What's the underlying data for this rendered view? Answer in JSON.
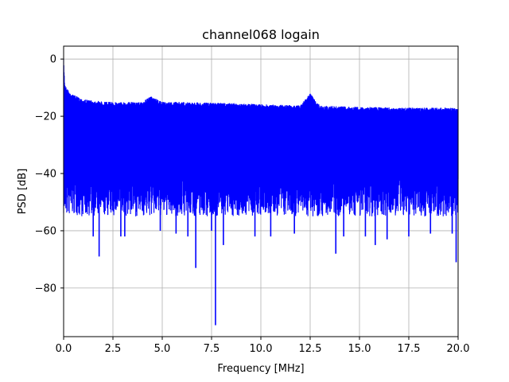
{
  "chart_data": {
    "type": "line",
    "title": "channel068 logain",
    "xlabel": "Frequency [MHz]",
    "ylabel": "PSD [dB]",
    "xlim": [
      0,
      20
    ],
    "ylim": [
      -97,
      4.5
    ],
    "grid": true,
    "x_ticks": [
      0,
      2.5,
      5,
      7.5,
      10,
      12.5,
      15,
      17.5,
      20
    ],
    "x_tick_labels": [
      "0.0",
      "2.5",
      "5.0",
      "7.5",
      "10.0",
      "12.5",
      "15.0",
      "17.5",
      "20.0"
    ],
    "y_ticks": [
      0,
      -20,
      -40,
      -60,
      -80
    ],
    "y_tick_labels": [
      "0",
      "−20",
      "−40",
      "−60",
      "−80"
    ],
    "series": [
      {
        "color": "#0000ff",
        "upper_envelope": {
          "x": [
            0,
            0.05,
            0.1,
            0.2,
            0.3,
            0.5,
            0.8,
            1.0,
            1.5,
            2.0,
            2.5,
            3.0,
            4.0,
            4.4,
            5.0,
            6.0,
            7.0,
            8.0,
            9.0,
            10.0,
            11.0,
            12.0,
            12.5,
            13.0,
            14.0,
            15.0,
            16.0,
            17.0,
            18.0,
            19.0,
            20.0
          ],
          "y": [
            0,
            -8,
            -9.5,
            -10.5,
            -11.5,
            -12.5,
            -13.5,
            -14,
            -14.5,
            -14.8,
            -15,
            -15,
            -15,
            -13,
            -15,
            -15,
            -15.2,
            -15.3,
            -15.5,
            -15.8,
            -16,
            -16.2,
            -12,
            -16.3,
            -16.5,
            -16.7,
            -16.8,
            -17,
            -17,
            -17,
            -17
          ]
        },
        "lower_band": [
          -40,
          -55
        ],
        "deep_notches": [
          {
            "x": 1.5,
            "y": -62
          },
          {
            "x": 1.8,
            "y": -69
          },
          {
            "x": 2.9,
            "y": -62
          },
          {
            "x": 3.1,
            "y": -62
          },
          {
            "x": 4.9,
            "y": -60
          },
          {
            "x": 5.7,
            "y": -61
          },
          {
            "x": 6.3,
            "y": -62
          },
          {
            "x": 6.7,
            "y": -73
          },
          {
            "x": 7.5,
            "y": -60
          },
          {
            "x": 7.7,
            "y": -93
          },
          {
            "x": 8.1,
            "y": -65
          },
          {
            "x": 9.7,
            "y": -62
          },
          {
            "x": 10.5,
            "y": -62
          },
          {
            "x": 11.7,
            "y": -61
          },
          {
            "x": 13.8,
            "y": -68
          },
          {
            "x": 14.2,
            "y": -62
          },
          {
            "x": 15.3,
            "y": -62
          },
          {
            "x": 15.8,
            "y": -65
          },
          {
            "x": 16.4,
            "y": -63
          },
          {
            "x": 17.5,
            "y": -62
          },
          {
            "x": 18.6,
            "y": -61
          },
          {
            "x": 19.7,
            "y": -61
          },
          {
            "x": 19.9,
            "y": -71
          }
        ]
      }
    ]
  }
}
